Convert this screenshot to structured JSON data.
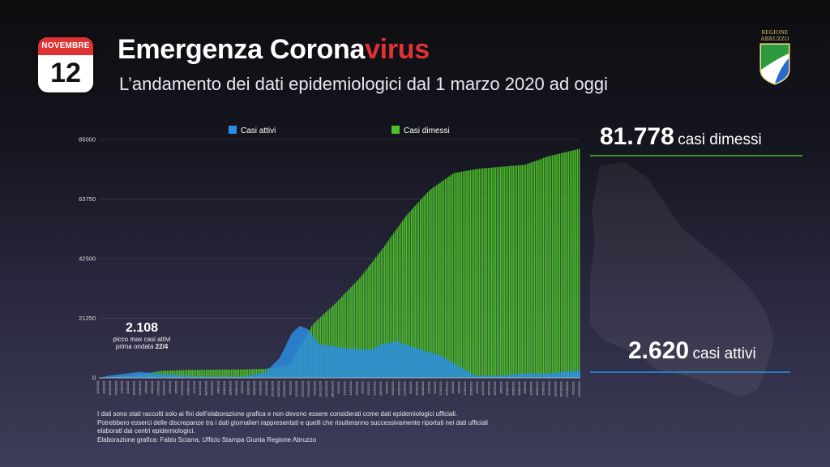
{
  "calendar": {
    "month": "NOVEMBRE",
    "day": "12"
  },
  "header": {
    "title_main": "Emergenza Corona",
    "title_highlight": "virus",
    "subtitle": "L’andamento dei dati epidemiologici dal 1 marzo 2020 ad oggi",
    "logo_line1": "REGIONE",
    "logo_line2": "ABRUZZO"
  },
  "stats": {
    "dimessi_value": "81.778",
    "dimessi_label": "casi dimessi",
    "attivi_value": "2.620",
    "attivi_label": "casi attivi"
  },
  "annotation": {
    "value": "2.108",
    "line1": "picco max casi attivi",
    "line2": "prima ondata ",
    "line2_bold": "22/4"
  },
  "notes": [
    "I dati sono stati raccolti solo ai fini dell’elaborazione grafica e non devono essere considerati come dati epidemiologici ufficiali.",
    "Potrebbero esserci delle discrepanze tra i dati giornalieri rappresentati e quelli che risulteranno successivamente riportati nei dati ufficiali",
    "elaborati dai centri epidemiologici.",
    "Elaborazione grafica: Fabio Sciarra, Ufficio Stampa Giunta Regione Abruzzo"
  ],
  "colors": {
    "attivi": "#2b8fe6",
    "dimessi": "#4cc22a",
    "overlap": "#3cc6b4",
    "accent_red": "#e03232",
    "dimessi_line": "#4cc22a",
    "attivi_line": "#2b8fe6"
  },
  "chart_data": {
    "type": "area",
    "x_label_visible": false,
    "ylim": [
      0,
      85000
    ],
    "yticks": [
      0,
      21250,
      42500,
      63750,
      85000
    ],
    "grid": true,
    "legend_position": "top",
    "x_range": [
      "1/3/2020",
      "12/11/2021"
    ],
    "series": [
      {
        "name": "Casi attivi",
        "color": "#2b8fe6",
        "points": [
          [
            "1/3/2020",
            0
          ],
          [
            "15/3/2020",
            800
          ],
          [
            "22/4/2020",
            2108
          ],
          [
            "15/5/2020",
            1500
          ],
          [
            "1/7/2020",
            500
          ],
          [
            "1/9/2020",
            400
          ],
          [
            "1/10/2020",
            1800
          ],
          [
            "20/10/2020",
            7000
          ],
          [
            "5/11/2020",
            16000
          ],
          [
            "15/11/2020",
            18500
          ],
          [
            "25/11/2020",
            17500
          ],
          [
            "10/12/2020",
            12000
          ],
          [
            "15/1/2021",
            10500
          ],
          [
            "15/2/2021",
            10000
          ],
          [
            "1/3/2021",
            12000
          ],
          [
            "20/3/2021",
            13000
          ],
          [
            "15/4/2021",
            10500
          ],
          [
            "15/5/2021",
            8000
          ],
          [
            "15/6/2021",
            3000
          ],
          [
            "1/7/2021",
            700
          ],
          [
            "1/8/2021",
            800
          ],
          [
            "1/9/2021",
            1600
          ],
          [
            "1/10/2021",
            1500
          ],
          [
            "12/11/2021",
            2620
          ]
        ]
      },
      {
        "name": "Casi dimessi",
        "color": "#4cc22a",
        "points": [
          [
            "1/3/2020",
            0
          ],
          [
            "15/4/2020",
            800
          ],
          [
            "20/5/2020",
            2500
          ],
          [
            "20/6/2020",
            2800
          ],
          [
            "1/9/2020",
            3000
          ],
          [
            "1/10/2020",
            3200
          ],
          [
            "1/11/2020",
            4500
          ],
          [
            "1/12/2020",
            19000
          ],
          [
            "1/1/2021",
            27000
          ],
          [
            "1/2/2021",
            36000
          ],
          [
            "1/3/2021",
            46000
          ],
          [
            "1/4/2021",
            58000
          ],
          [
            "1/5/2021",
            67000
          ],
          [
            "1/6/2021",
            73000
          ],
          [
            "1/7/2021",
            74500
          ],
          [
            "1/9/2021",
            76000
          ],
          [
            "1/10/2021",
            79000
          ],
          [
            "12/11/2021",
            81778
          ]
        ]
      }
    ]
  }
}
